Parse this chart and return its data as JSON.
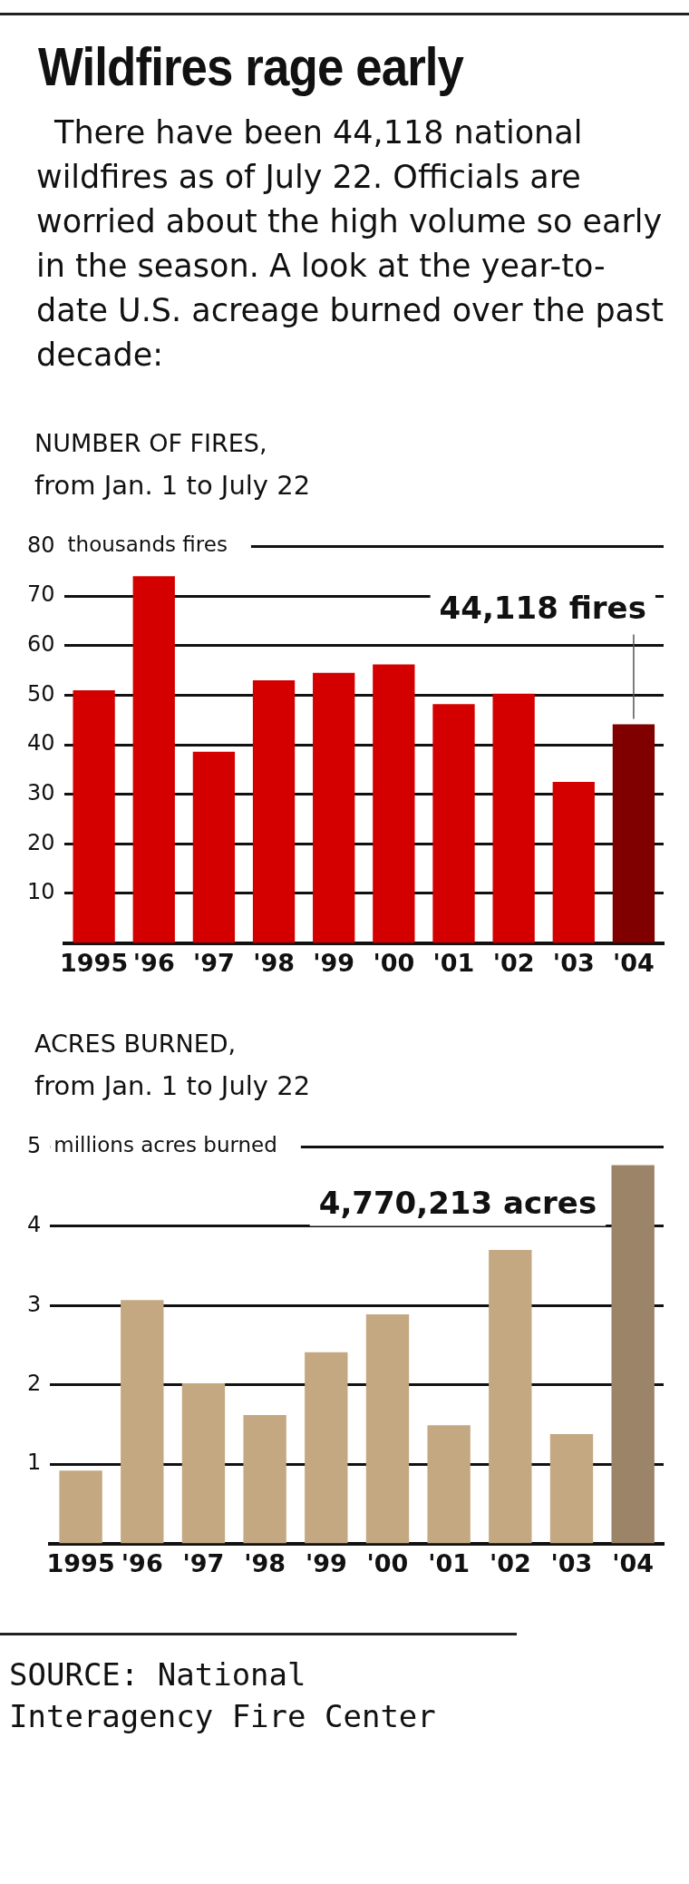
{
  "chart_data": [
    {
      "type": "other",
      "title": "Wildfires rage early",
      "subtitle": "There have been 44,118 national wildfires as of July 22. Officials are worried about the high volume so early in the season. A look at the year-to-date U.S. acreage burned over the past decade:"
    },
    {
      "type": "bar",
      "title": "NUMBER OF FIRES,",
      "subtitle": "from Jan. 1 to July 22",
      "ylabel": "thousands fires",
      "categories": [
        "1995",
        "'96",
        "'97",
        "'98",
        "'99",
        "'00",
        "'01",
        "'02",
        "'03",
        "'04"
      ],
      "values": [
        51,
        74,
        38.6,
        53,
        54.5,
        56.2,
        48.2,
        50.3,
        32.5,
        44.118
      ],
      "colors": [
        "#d40000",
        "#d40000",
        "#d40000",
        "#d40000",
        "#d40000",
        "#d40000",
        "#d40000",
        "#d40000",
        "#d40000",
        "#800000"
      ],
      "ylim": [
        0,
        80
      ],
      "yticks": [
        10,
        20,
        30,
        40,
        50,
        60,
        70,
        80
      ],
      "grid": "y",
      "legend": false,
      "annotations": [
        {
          "text": "44,118 fires",
          "x": "'04",
          "y": 44.118
        }
      ]
    },
    {
      "type": "bar",
      "title": "ACRES BURNED,",
      "subtitle": "from Jan. 1 to July 22",
      "ylabel": "millions acres burned",
      "categories": [
        "1995",
        "'96",
        "'97",
        "'98",
        "'99",
        "'00",
        "'01",
        "'02",
        "'03",
        "'04"
      ],
      "values": [
        0.92,
        3.07,
        2.02,
        1.62,
        2.41,
        2.89,
        1.49,
        3.7,
        1.38,
        4.770213
      ],
      "colors": [
        "#c4a882",
        "#c4a882",
        "#c4a882",
        "#c4a882",
        "#c4a882",
        "#c4a882",
        "#c4a882",
        "#c4a882",
        "#c4a882",
        "#9b8468"
      ],
      "ylim": [
        0,
        5
      ],
      "yticks": [
        1,
        2,
        3,
        4,
        5
      ],
      "grid": "y",
      "legend": false,
      "annotations": [
        {
          "text": "4,770,213 acres",
          "x": "'04",
          "y": 4.770213
        },
        "SOURCE: National Interagency Fire Center"
      ]
    }
  ]
}
